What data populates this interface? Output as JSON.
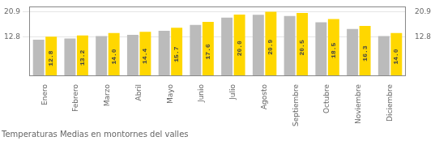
{
  "chart_data": {
    "type": "bar",
    "title": "Temperaturas Medias en montornes del valles",
    "categories": [
      "Enero",
      "Febrero",
      "Marzo",
      "Abril",
      "Mayo",
      "Junio",
      "Julio",
      "Agosto",
      "Septiembre",
      "Octubre",
      "Noviembre",
      "Diciembre"
    ],
    "series": [
      {
        "color": "#BBBBBB",
        "values": [
          11.8,
          12.2,
          13.0,
          13.4,
          14.7,
          16.6,
          19.0,
          19.9,
          19.5,
          17.5,
          15.3,
          13.0
        ]
      },
      {
        "color": "#FFD700",
        "values": [
          12.8,
          13.2,
          14.0,
          14.4,
          15.7,
          17.6,
          20.0,
          20.9,
          20.5,
          18.5,
          16.3,
          14.0
        ],
        "data_labels": true,
        "value_labels": [
          "12.8",
          "13.2",
          "14.0",
          "14.4",
          "15.7",
          "17.6",
          "20.0",
          "20.9",
          "20.5",
          "18.5",
          "16.3",
          "14.0"
        ]
      }
    ],
    "ylim": [
      0,
      22.5
    ],
    "yticks": [
      12.8,
      20.9
    ],
    "y2lim": [
      0,
      22.5
    ],
    "y2ticks": [
      12.8,
      20.9
    ],
    "grid": true
  }
}
